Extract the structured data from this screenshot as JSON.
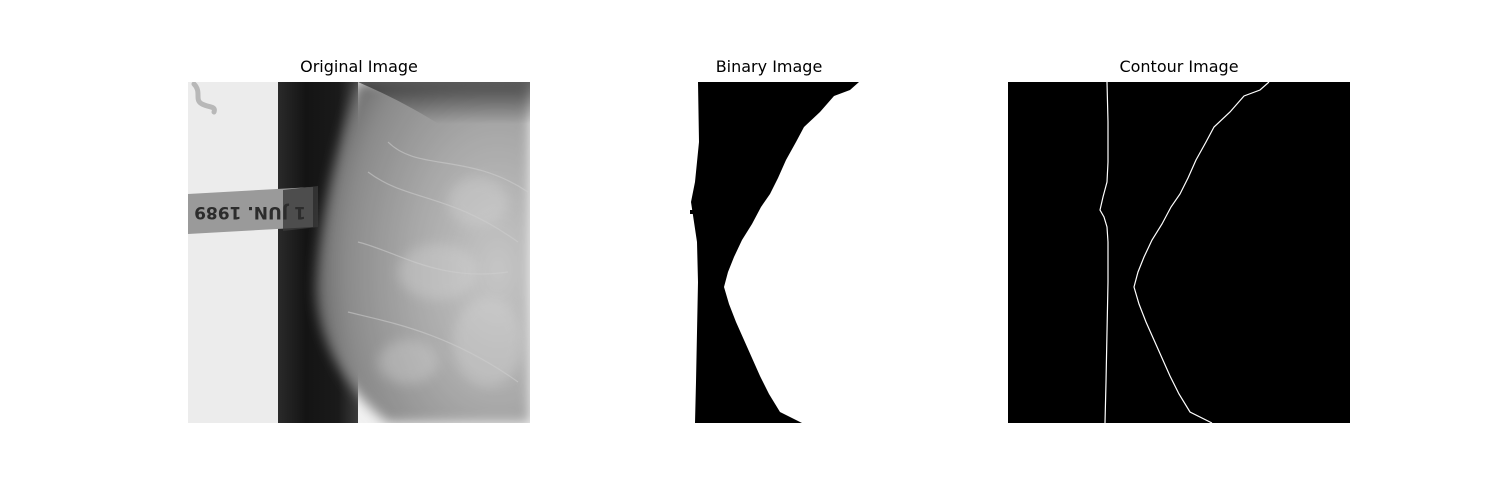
{
  "panels": [
    {
      "title": "Original Image",
      "image": "original-grayscale-breast-scan"
    },
    {
      "title": "Binary Image",
      "image": "binary-threshold-mask"
    },
    {
      "title": "Contour Image",
      "image": "detected-contour-lines"
    }
  ],
  "label_strip_text": "1 JUN. 1989",
  "colors": {
    "background": "#ffffff",
    "mask_fill": "#000000",
    "contour_line": "#ffffff"
  }
}
